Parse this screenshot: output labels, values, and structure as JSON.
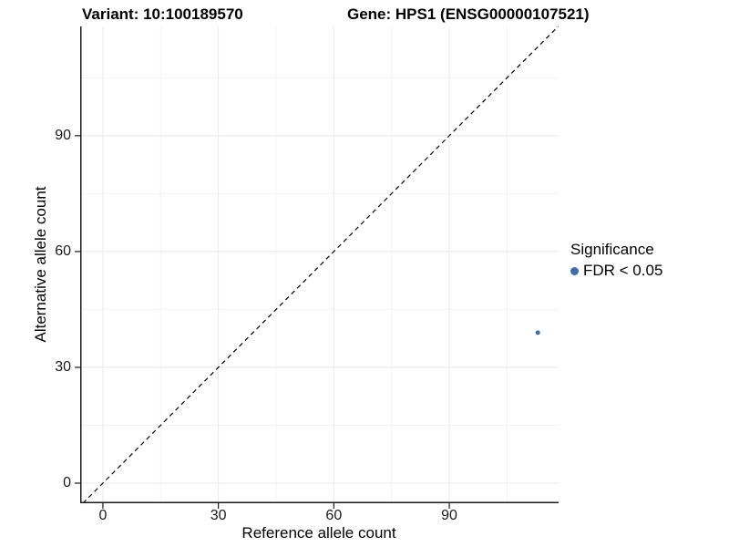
{
  "chart_data": {
    "type": "scatter",
    "titles": {
      "left": "Variant: 10:100189570",
      "right": "Gene: HPS1 (ENSG00000107521)"
    },
    "xlabel": "Reference allele count",
    "ylabel": "Alternative allele count",
    "xlim": [
      -5.9,
      118.4
    ],
    "ylim": [
      -5.2,
      118.3
    ],
    "xticks": [
      0,
      30,
      60,
      90
    ],
    "yticks": [
      0,
      30,
      60,
      90
    ],
    "xminor": [
      15,
      45,
      75,
      105
    ],
    "yminor": [
      15,
      45,
      75,
      105
    ],
    "grid": "major+minor",
    "identity_line": true,
    "points": [
      {
        "x": 113,
        "y": 39,
        "significance": "FDR < 0.05",
        "radius": 2.5
      }
    ],
    "legend": {
      "position": "right",
      "title": "Significance",
      "items": [
        {
          "label": "FDR < 0.05",
          "color": "#3d6fa5"
        }
      ]
    },
    "colors": {
      "point": "#3d6fa5",
      "grid_major": "#e8e8e8",
      "grid_minor": "#f3f3f3",
      "axis_line": "#1a1a1a",
      "identity_line": "#000000"
    }
  }
}
